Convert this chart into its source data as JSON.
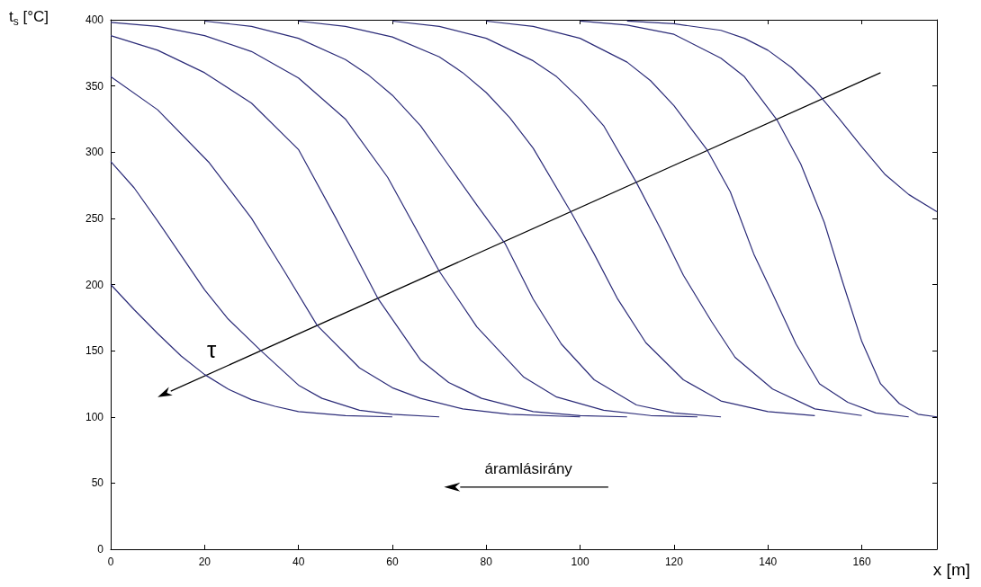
{
  "chart_data": {
    "type": "line",
    "xlabel": "x [m]",
    "ylabel": "t$_{s}$ [°C]",
    "annotations": [
      "τ",
      "áramlásirány"
    ],
    "xlim": [
      0,
      176
    ],
    "xticks": [
      0,
      20,
      40,
      60,
      80,
      100,
      120,
      140,
      160
    ],
    "ylim": [
      0,
      400
    ],
    "yticks": [
      0,
      50,
      100,
      150,
      200,
      250,
      300,
      350,
      400
    ],
    "grid": false,
    "line_style": "solid",
    "marker": "none",
    "series": [
      {
        "color": "#2b2b78",
        "x": [
          0,
          5,
          10,
          15,
          20,
          25,
          30,
          35,
          40,
          50,
          60
        ],
        "values": [
          200,
          181,
          163,
          146,
          132,
          121,
          113,
          108,
          104,
          101,
          100
        ]
      },
      {
        "color": "#2b2b78",
        "x": [
          0,
          5,
          10,
          15,
          20,
          25,
          32,
          40,
          45,
          53,
          60,
          70
        ],
        "values": [
          293,
          273,
          248,
          222,
          196,
          174,
          150,
          124,
          114,
          105,
          102,
          100
        ]
      },
      {
        "color": "#2b2b78",
        "x": [
          0,
          10,
          21,
          30,
          37,
          44,
          53,
          60,
          66,
          75,
          85,
          100
        ],
        "values": [
          357,
          332,
          292,
          250,
          210,
          169,
          137,
          122,
          114,
          106,
          102,
          100
        ]
      },
      {
        "color": "#2b2b78",
        "x": [
          0,
          10,
          20,
          30,
          40,
          48,
          57,
          66,
          72,
          79,
          90,
          100,
          110
        ],
        "values": [
          388,
          377,
          360,
          337,
          302,
          250,
          189,
          143,
          126,
          114,
          104,
          101,
          100
        ]
      },
      {
        "color": "#2b2b78",
        "x": [
          0,
          10,
          20,
          30,
          40,
          50,
          59,
          70,
          78,
          88,
          95,
          105,
          115,
          125
        ],
        "values": [
          398,
          395,
          388,
          376,
          356,
          325,
          281,
          210,
          168,
          130,
          115,
          105,
          101,
          100
        ]
      },
      {
        "color": "#2b2b78",
        "x": [
          20,
          30,
          40,
          50,
          55,
          60,
          66,
          72,
          78,
          84,
          90,
          96,
          103,
          112,
          120,
          130
        ],
        "values": [
          399,
          395,
          386,
          370,
          358,
          343,
          320,
          290,
          260,
          231,
          189,
          155,
          128,
          109,
          103,
          100
        ]
      },
      {
        "color": "#2b2b78",
        "x": [
          40,
          50,
          60,
          70,
          75,
          80,
          85,
          90,
          98,
          103,
          108,
          114,
          122,
          130,
          140,
          150
        ],
        "values": [
          399,
          395,
          387,
          372,
          360,
          345,
          326,
          303,
          255,
          223,
          189,
          156,
          128,
          112,
          104,
          101
        ]
      },
      {
        "color": "#2b2b78",
        "x": [
          60,
          70,
          80,
          90,
          95,
          100,
          105,
          112,
          117,
          122,
          128,
          133,
          141,
          150,
          160
        ],
        "values": [
          399,
          395,
          386,
          369,
          357,
          340,
          320,
          277,
          243,
          207,
          172,
          145,
          121,
          106,
          101
        ]
      },
      {
        "color": "#2b2b78",
        "x": [
          80,
          90,
          100,
          110,
          115,
          120,
          127,
          132,
          137,
          141,
          146,
          151,
          157,
          163,
          170
        ],
        "values": [
          399,
          395,
          386,
          368,
          354,
          335,
          302,
          270,
          223,
          193,
          155,
          125,
          111,
          103,
          100
        ]
      },
      {
        "color": "#2b2b78",
        "x": [
          100,
          110,
          120,
          130,
          135,
          142,
          147,
          152,
          156,
          160,
          164,
          168,
          172,
          176
        ],
        "values": [
          399,
          396,
          389,
          371,
          357,
          324,
          291,
          247,
          201,
          157,
          125,
          110,
          102,
          100
        ]
      },
      {
        "color": "#2b2b78",
        "x": [
          110,
          120,
          130,
          135,
          140,
          145,
          150,
          155,
          160,
          165,
          170,
          176
        ],
        "values": [
          399,
          397,
          392,
          386,
          377,
          364,
          347,
          326,
          304,
          283,
          268,
          255
        ]
      }
    ]
  }
}
